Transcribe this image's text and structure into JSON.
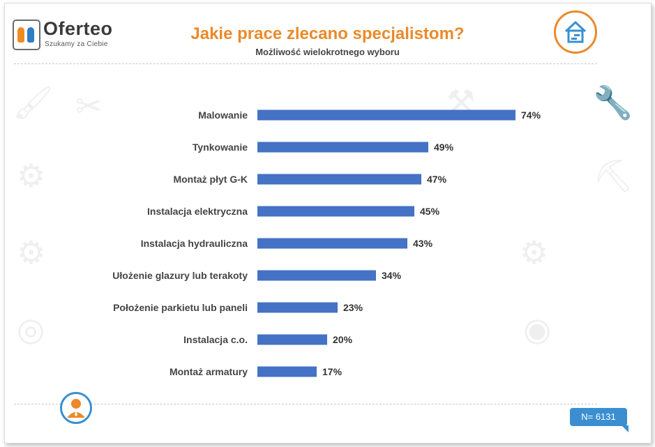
{
  "brand": {
    "name": "Oferteo",
    "tagline": "Szukamy za Ciebie"
  },
  "header": {
    "title": "Jakie prace zlecano specjalistom?",
    "subtitle": "Możliwość wielokrotnego wyboru"
  },
  "footer": {
    "sample_label": "N= 6131"
  },
  "icons": {
    "house": "house-icon",
    "person": "person-icon"
  },
  "colors": {
    "bar": "#4472c4",
    "title": "#ea8a2a",
    "badge": "#3b8fd0"
  },
  "chart_data": {
    "type": "bar",
    "orientation": "horizontal",
    "categories": [
      "Malowanie",
      "Tynkowanie",
      "Montaż płyt G-K",
      "Instalacja elektryczna",
      "Instalacja hydrauliczna",
      "Ułożenie glazury lub terakoty",
      "Położenie parkietu lub paneli",
      "Instalacja c.o.",
      "Montaż armatury"
    ],
    "values": [
      74,
      49,
      47,
      45,
      43,
      34,
      23,
      20,
      17
    ],
    "value_labels": [
      "74%",
      "49%",
      "47%",
      "45%",
      "43%",
      "34%",
      "23%",
      "20%",
      "17%"
    ],
    "unit": "%",
    "xlim": [
      0,
      100
    ],
    "grid": false,
    "legend": "none"
  }
}
